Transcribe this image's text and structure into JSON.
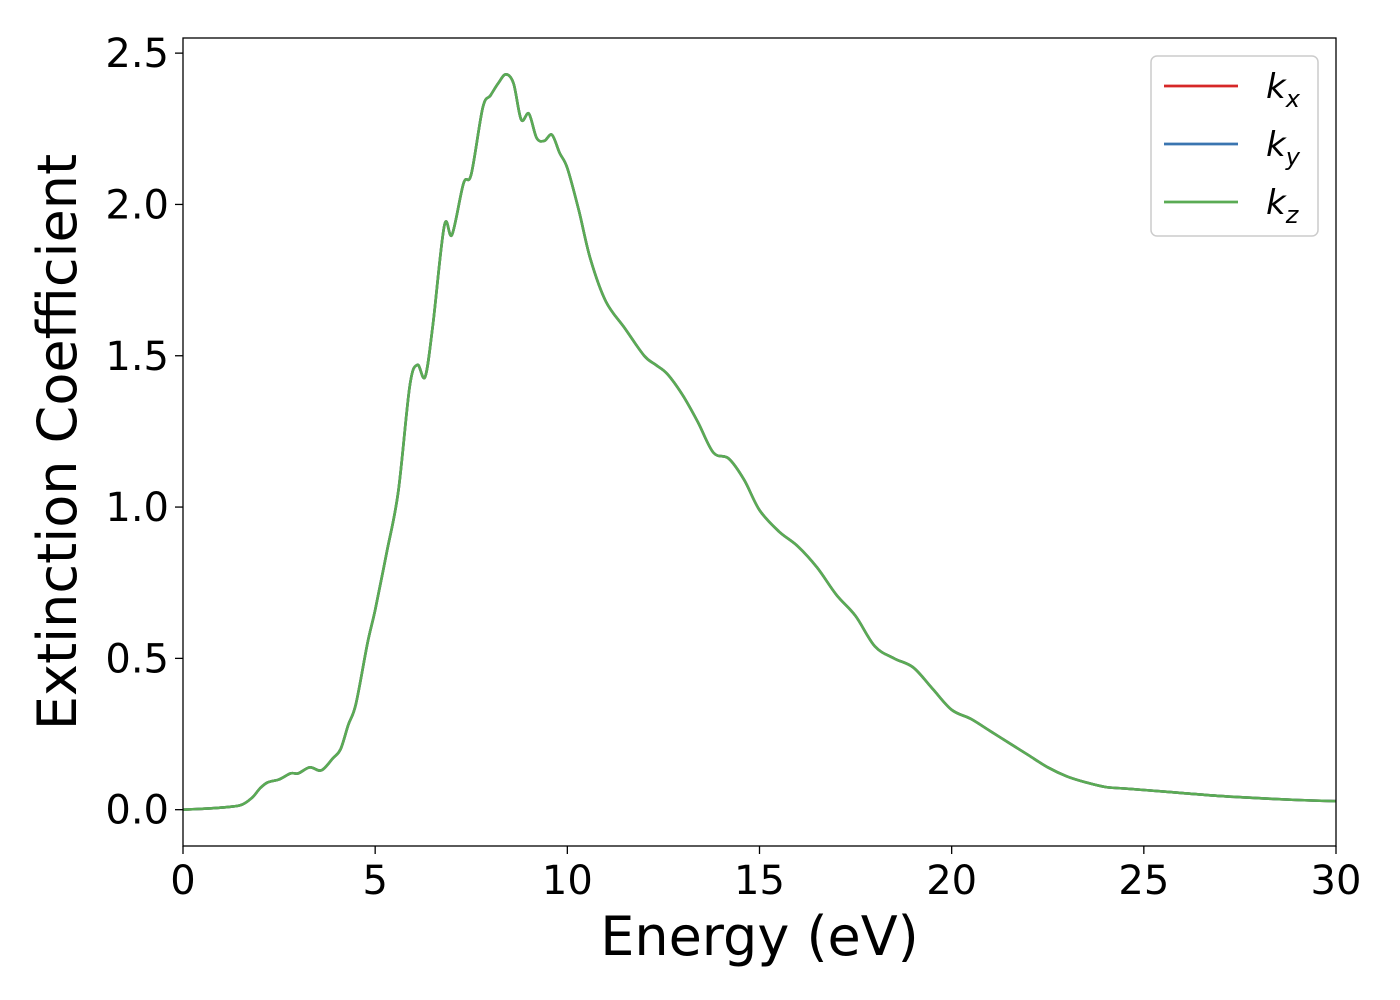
{
  "chart_data": {
    "type": "line",
    "title": "",
    "xlabel": "Energy (eV)",
    "ylabel": "Extinction Coefficient",
    "xlim": [
      0,
      30
    ],
    "ylim": [
      -0.12,
      2.55
    ],
    "xticks": [
      0,
      5,
      10,
      15,
      20,
      25,
      30
    ],
    "xtick_labels": [
      "0",
      "5",
      "10",
      "15",
      "20",
      "25",
      "30"
    ],
    "yticks": [
      0.0,
      0.5,
      1.0,
      1.5,
      2.0,
      2.5
    ],
    "ytick_labels": [
      "0.0",
      "0.5",
      "1.0",
      "1.5",
      "2.0",
      "2.5"
    ],
    "grid": false,
    "legend_position": "top-right",
    "x": [
      0,
      0.5,
      1.0,
      1.5,
      1.8,
      2.0,
      2.2,
      2.5,
      2.8,
      3.0,
      3.3,
      3.6,
      3.9,
      4.1,
      4.3,
      4.5,
      4.8,
      5.0,
      5.3,
      5.6,
      5.9,
      6.1,
      6.3,
      6.5,
      6.8,
      7.0,
      7.3,
      7.5,
      7.8,
      8.0,
      8.2,
      8.4,
      8.6,
      8.8,
      9.0,
      9.2,
      9.4,
      9.6,
      9.8,
      10.0,
      10.3,
      10.6,
      11.0,
      11.5,
      12.0,
      12.3,
      12.6,
      13.0,
      13.4,
      13.8,
      14.2,
      14.6,
      15.0,
      15.5,
      16.0,
      16.5,
      17.0,
      17.5,
      18.0,
      18.5,
      19.0,
      19.5,
      20.0,
      20.5,
      21.0,
      21.5,
      22.0,
      22.5,
      23.0,
      23.5,
      24.0,
      24.5,
      25.0,
      26.0,
      27.0,
      28.0,
      29.0,
      30.0
    ],
    "series": [
      {
        "name": "k_x",
        "label": {
          "base": "k",
          "sub": "x"
        },
        "color": "#d62728",
        "values": [
          0.0,
          0.003,
          0.007,
          0.015,
          0.04,
          0.07,
          0.09,
          0.1,
          0.12,
          0.12,
          0.14,
          0.13,
          0.17,
          0.2,
          0.28,
          0.35,
          0.55,
          0.66,
          0.85,
          1.05,
          1.4,
          1.47,
          1.43,
          1.6,
          1.93,
          1.9,
          2.07,
          2.1,
          2.32,
          2.36,
          2.4,
          2.43,
          2.4,
          2.28,
          2.3,
          2.22,
          2.21,
          2.23,
          2.17,
          2.12,
          1.98,
          1.82,
          1.68,
          1.59,
          1.5,
          1.47,
          1.44,
          1.37,
          1.28,
          1.18,
          1.16,
          1.09,
          0.99,
          0.92,
          0.87,
          0.8,
          0.71,
          0.64,
          0.54,
          0.5,
          0.47,
          0.4,
          0.33,
          0.3,
          0.26,
          0.22,
          0.18,
          0.14,
          0.11,
          0.09,
          0.075,
          0.07,
          0.065,
          0.055,
          0.045,
          0.038,
          0.032,
          0.028
        ]
      },
      {
        "name": "k_y",
        "label": {
          "base": "k",
          "sub": "y"
        },
        "color": "#3a75b0",
        "values": [
          0.0,
          0.003,
          0.007,
          0.015,
          0.04,
          0.07,
          0.09,
          0.1,
          0.12,
          0.12,
          0.14,
          0.13,
          0.17,
          0.2,
          0.28,
          0.35,
          0.55,
          0.66,
          0.85,
          1.05,
          1.4,
          1.47,
          1.43,
          1.6,
          1.93,
          1.9,
          2.07,
          2.1,
          2.32,
          2.36,
          2.4,
          2.43,
          2.4,
          2.28,
          2.3,
          2.22,
          2.21,
          2.23,
          2.17,
          2.12,
          1.98,
          1.82,
          1.68,
          1.59,
          1.5,
          1.47,
          1.44,
          1.37,
          1.28,
          1.18,
          1.16,
          1.09,
          0.99,
          0.92,
          0.87,
          0.8,
          0.71,
          0.64,
          0.54,
          0.5,
          0.47,
          0.4,
          0.33,
          0.3,
          0.26,
          0.22,
          0.18,
          0.14,
          0.11,
          0.09,
          0.075,
          0.07,
          0.065,
          0.055,
          0.045,
          0.038,
          0.032,
          0.028
        ]
      },
      {
        "name": "k_z",
        "label": {
          "base": "k",
          "sub": "z"
        },
        "color": "#5aab54",
        "values": [
          0.0,
          0.003,
          0.007,
          0.015,
          0.04,
          0.07,
          0.09,
          0.1,
          0.12,
          0.12,
          0.14,
          0.13,
          0.17,
          0.2,
          0.28,
          0.35,
          0.55,
          0.66,
          0.85,
          1.05,
          1.4,
          1.47,
          1.43,
          1.6,
          1.93,
          1.9,
          2.07,
          2.1,
          2.32,
          2.36,
          2.4,
          2.43,
          2.4,
          2.28,
          2.3,
          2.22,
          2.21,
          2.23,
          2.17,
          2.12,
          1.98,
          1.82,
          1.68,
          1.59,
          1.5,
          1.47,
          1.44,
          1.37,
          1.28,
          1.18,
          1.16,
          1.09,
          0.99,
          0.92,
          0.87,
          0.8,
          0.71,
          0.64,
          0.54,
          0.5,
          0.47,
          0.4,
          0.33,
          0.3,
          0.26,
          0.22,
          0.18,
          0.14,
          0.11,
          0.09,
          0.075,
          0.07,
          0.065,
          0.055,
          0.045,
          0.038,
          0.032,
          0.028
        ]
      }
    ]
  }
}
